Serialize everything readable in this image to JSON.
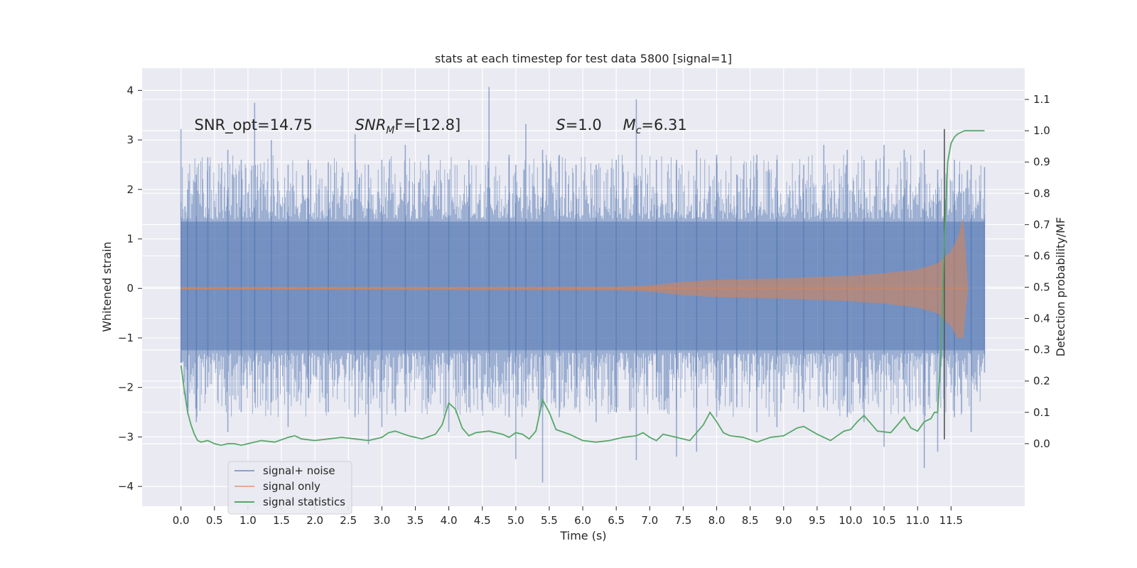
{
  "chart_data": {
    "type": "line",
    "title": "stats at each timestep for test data 5800 [signal=1]",
    "xlabel": "Time (s)",
    "ylabel_left": "Whitened strain",
    "ylabel_right": "Detection probability/MF",
    "xlim": [
      -0.58,
      12.6
    ],
    "ylim_left": [
      -4.4,
      4.45
    ],
    "ylim_right": [
      -0.2,
      1.2
    ],
    "x_ticks": [
      "0.0",
      "0.5",
      "1.0",
      "1.5",
      "2.0",
      "2.5",
      "3.0",
      "3.5",
      "4.0",
      "4.5",
      "5.0",
      "5.5",
      "6.0",
      "6.5",
      "7.0",
      "7.5",
      "8.0",
      "8.5",
      "9.0",
      "9.5",
      "10.0",
      "10.5",
      "11.0",
      "11.5"
    ],
    "y_left_ticks": [
      "4",
      "3",
      "2",
      "1",
      "0",
      "−1",
      "−2",
      "−3",
      "−4"
    ],
    "y_right_ticks": [
      "1.1",
      "1.0",
      "0.9",
      "0.8",
      "0.7",
      "0.6",
      "0.5",
      "0.4",
      "0.3",
      "0.2",
      "0.1",
      "0.0"
    ],
    "grid": true,
    "legend_position": "lower-left",
    "colors": {
      "noise": "#4c72b0",
      "signal": "#dd8452",
      "stats": "#55a868",
      "background": "#eaeaf2",
      "marker": "#555555"
    },
    "annotations": [
      {
        "text": "SNR_opt=14.75",
        "x": 0.2,
        "y": 3.3
      },
      {
        "base": "SNR",
        "sub": "M",
        "rest": "F=[12.8]",
        "x": 2.6,
        "y": 3.3
      },
      {
        "base": "S",
        "sub": "",
        "rest": "=1.0",
        "x": 5.6,
        "y": 3.3
      },
      {
        "base": "M",
        "sub": "c",
        "rest": "=6.31",
        "x": 6.6,
        "y": 3.3
      }
    ],
    "series": [
      {
        "name": "signal+ noise",
        "kind": "noise-band",
        "t_range": [
          0.0,
          12.0
        ],
        "core_envelope": [
          -1.25,
          1.35
        ],
        "spikes": [
          [
            0.0,
            3.22,
            -1.5
          ],
          [
            0.1,
            2.0,
            -2.4
          ],
          [
            0.23,
            2.3,
            -2.7
          ],
          [
            0.4,
            2.65,
            -2.0
          ],
          [
            0.7,
            2.8,
            -2.9
          ],
          [
            0.9,
            2.6,
            -2.5
          ],
          [
            1.1,
            3.75,
            -2.1
          ],
          [
            1.35,
            3.0,
            -2.3
          ],
          [
            1.6,
            2.5,
            -2.8
          ],
          [
            1.9,
            2.6,
            -2.2
          ],
          [
            2.2,
            2.55,
            -2.5
          ],
          [
            2.6,
            3.12,
            -2.6
          ],
          [
            2.8,
            2.5,
            -3.15
          ],
          [
            3.0,
            2.6,
            -2.8
          ],
          [
            3.35,
            2.9,
            -2.5
          ],
          [
            3.7,
            2.7,
            -2.3
          ],
          [
            4.0,
            2.2,
            -2.9
          ],
          [
            4.3,
            2.6,
            -2.4
          ],
          [
            4.6,
            4.07,
            -2.0
          ],
          [
            4.9,
            2.7,
            -2.6
          ],
          [
            5.0,
            2.5,
            -3.45
          ],
          [
            5.15,
            3.32,
            -2.4
          ],
          [
            5.4,
            2.8,
            -3.92
          ],
          [
            5.65,
            2.7,
            -2.6
          ],
          [
            5.9,
            2.5,
            -2.4
          ],
          [
            6.2,
            2.5,
            -2.7
          ],
          [
            6.5,
            2.6,
            -2.5
          ],
          [
            6.8,
            3.82,
            -3.47
          ],
          [
            7.1,
            2.6,
            -2.2
          ],
          [
            7.4,
            2.6,
            -3.4
          ],
          [
            7.7,
            2.8,
            -3.3
          ],
          [
            8.0,
            2.7,
            -2.6
          ],
          [
            8.3,
            2.3,
            -2.4
          ],
          [
            8.6,
            2.7,
            -2.9
          ],
          [
            8.9,
            2.6,
            -2.8
          ],
          [
            9.3,
            2.5,
            -2.5
          ],
          [
            9.6,
            2.9,
            -2.4
          ],
          [
            9.95,
            2.8,
            -2.6
          ],
          [
            10.2,
            2.6,
            -2.7
          ],
          [
            10.5,
            2.9,
            -3.2
          ],
          [
            10.8,
            2.8,
            -2.5
          ],
          [
            11.1,
            2.8,
            -3.63
          ],
          [
            11.3,
            2.4,
            -3.3
          ],
          [
            11.55,
            2.6,
            -2.6
          ],
          [
            11.8,
            2.5,
            -2.9
          ],
          [
            12.0,
            2.45,
            -1.7
          ]
        ]
      },
      {
        "name": "signal only",
        "kind": "chirp",
        "t_range": [
          0.0,
          11.75
        ],
        "amplitude_envelope": [
          [
            0.0,
            0.02
          ],
          [
            6.5,
            0.03
          ],
          [
            7.0,
            0.06
          ],
          [
            7.5,
            0.13
          ],
          [
            8.0,
            0.17
          ],
          [
            9.0,
            0.2
          ],
          [
            10.0,
            0.25
          ],
          [
            10.5,
            0.3
          ],
          [
            11.0,
            0.38
          ],
          [
            11.3,
            0.5
          ],
          [
            11.5,
            0.75
          ],
          [
            11.6,
            1.0
          ],
          [
            11.68,
            1.4
          ],
          [
            11.72,
            0.6
          ],
          [
            11.75,
            0.0
          ]
        ]
      },
      {
        "name": "signal statistics",
        "kind": "line",
        "x": [
          0.0,
          0.05,
          0.1,
          0.15,
          0.2,
          0.25,
          0.3,
          0.4,
          0.5,
          0.6,
          0.7,
          0.8,
          0.9,
          1.0,
          1.2,
          1.4,
          1.6,
          1.7,
          1.8,
          2.0,
          2.2,
          2.4,
          2.6,
          2.8,
          3.0,
          3.1,
          3.2,
          3.4,
          3.6,
          3.8,
          3.9,
          4.0,
          4.1,
          4.2,
          4.3,
          4.4,
          4.6,
          4.8,
          4.9,
          5.0,
          5.1,
          5.2,
          5.3,
          5.4,
          5.5,
          5.6,
          5.8,
          6.0,
          6.2,
          6.4,
          6.6,
          6.8,
          6.9,
          7.0,
          7.1,
          7.2,
          7.4,
          7.6,
          7.8,
          7.9,
          8.0,
          8.1,
          8.2,
          8.4,
          8.6,
          8.8,
          9.0,
          9.2,
          9.3,
          9.5,
          9.7,
          9.8,
          9.9,
          10.0,
          10.1,
          10.2,
          10.4,
          10.6,
          10.7,
          10.8,
          10.9,
          11.0,
          11.1,
          11.2,
          11.25,
          11.3,
          11.35,
          11.4,
          11.45,
          11.5,
          11.55,
          11.6,
          11.7,
          11.8,
          11.9,
          12.0
        ],
        "y": [
          0.25,
          0.17,
          0.1,
          0.06,
          0.03,
          0.01,
          0.005,
          0.01,
          0.0,
          -0.005,
          0.0,
          0.0,
          -0.005,
          0.0,
          0.01,
          0.005,
          0.02,
          0.025,
          0.015,
          0.01,
          0.015,
          0.02,
          0.015,
          0.01,
          0.02,
          0.035,
          0.04,
          0.025,
          0.015,
          0.03,
          0.06,
          0.13,
          0.11,
          0.05,
          0.025,
          0.035,
          0.04,
          0.03,
          0.02,
          0.035,
          0.03,
          0.015,
          0.04,
          0.14,
          0.1,
          0.045,
          0.03,
          0.01,
          0.005,
          0.01,
          0.02,
          0.025,
          0.035,
          0.02,
          0.01,
          0.03,
          0.02,
          0.01,
          0.06,
          0.1,
          0.07,
          0.035,
          0.025,
          0.02,
          0.005,
          0.02,
          0.025,
          0.05,
          0.055,
          0.03,
          0.01,
          0.025,
          0.04,
          0.045,
          0.07,
          0.09,
          0.04,
          0.035,
          0.06,
          0.085,
          0.05,
          0.04,
          0.07,
          0.08,
          0.1,
          0.1,
          0.3,
          0.65,
          0.9,
          0.96,
          0.98,
          0.99,
          1.0,
          1.0,
          1.0,
          1.0
        ]
      }
    ],
    "vertical_marker_x": 11.4,
    "legend": [
      "signal+ noise",
      "signal only",
      "signal statistics"
    ]
  }
}
